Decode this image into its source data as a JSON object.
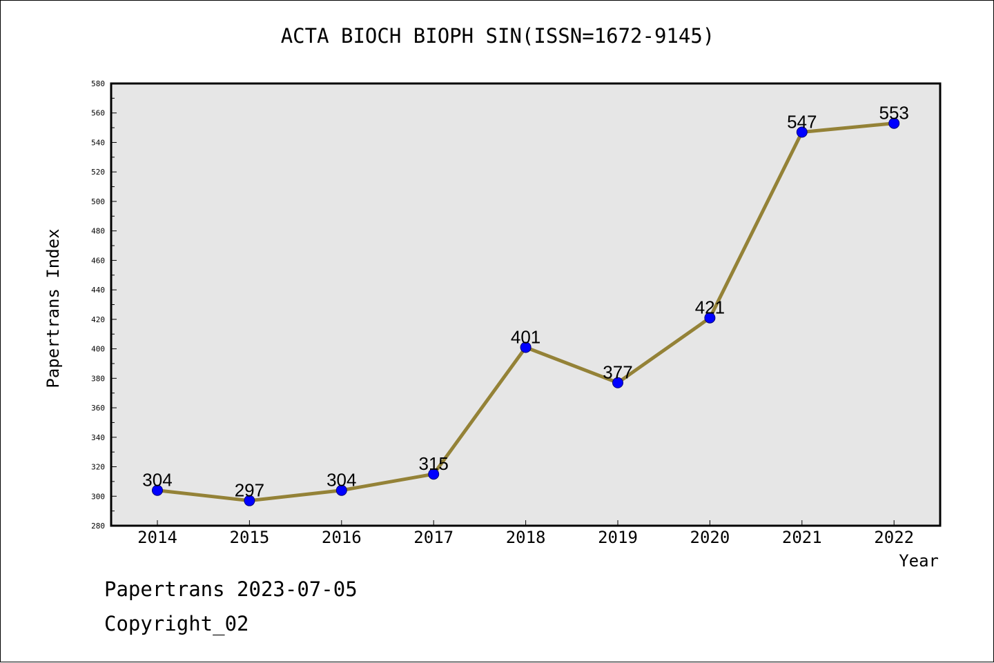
{
  "chart_data": {
    "type": "line",
    "title": "ACTA BIOCH BIOPH SIN(ISSN=1672-9145)",
    "xlabel": "Year",
    "ylabel": "Papertrans Index",
    "x": [
      "2014",
      "2015",
      "2016",
      "2017",
      "2018",
      "2019",
      "2020",
      "2021",
      "2022"
    ],
    "series": [
      {
        "values": [
          304,
          297,
          304,
          315,
          401,
          377,
          421,
          547,
          553
        ]
      }
    ],
    "y_ticks": [
      280,
      300,
      320,
      340,
      360,
      380,
      400,
      420,
      440,
      460,
      480,
      500,
      520,
      540,
      560,
      580
    ],
    "ylim": [
      280,
      580
    ],
    "grid": false,
    "colors": {
      "plot_background": "#e6e6e6",
      "line": "#948237",
      "marker": "#0000ff"
    }
  },
  "footer": {
    "line1": "Papertrans 2023-07-05",
    "line2": "Copyright_02"
  }
}
